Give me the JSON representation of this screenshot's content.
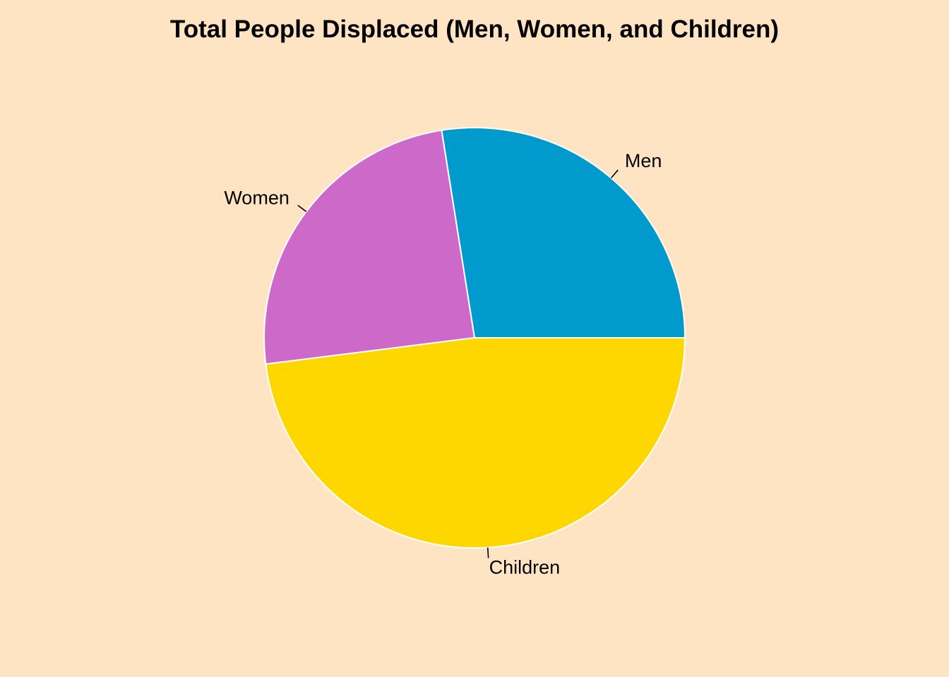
{
  "chart_data": {
    "type": "pie",
    "title": "Total People Displaced (Men, Women, and Children)",
    "categories": [
      "Men",
      "Women",
      "Children"
    ],
    "values": [
      27.5,
      24.5,
      48.0
    ],
    "unit": "percent of total (estimated)",
    "colors": [
      "#009ACD",
      "#CD69C9",
      "#FFD700"
    ],
    "start_angle": "0 degrees (3 o'clock), counter-clockwise",
    "border_color": "#FFFFFF",
    "background": "#FFE4C4",
    "legend": "none (direct labels)"
  }
}
